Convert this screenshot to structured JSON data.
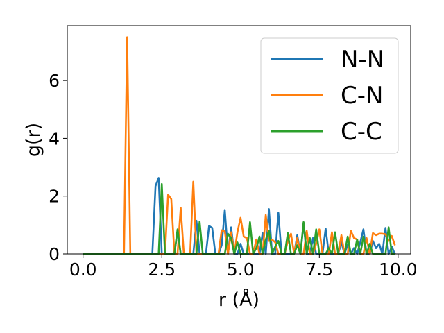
{
  "chart_data": {
    "type": "line",
    "xlabel": "r (Å)",
    "ylabel": "g(r)",
    "xlim": [
      -0.5,
      10.4
    ],
    "ylim": [
      0,
      7.9
    ],
    "xticks": [
      0.0,
      2.5,
      5.0,
      7.5,
      10.0
    ],
    "xtick_labels": [
      "0.0",
      "2.5",
      "5.0",
      "7.5",
      "10.0"
    ],
    "yticks": [
      0,
      2,
      4,
      6
    ],
    "ytick_labels": [
      "0",
      "2",
      "4",
      "6"
    ],
    "grid": false,
    "legend": "upper right",
    "series": [
      {
        "name": "N-N",
        "color": "#1f77b4",
        "x": [
          0.0,
          2.1,
          2.2,
          2.3,
          2.4,
          2.5,
          2.6,
          2.7,
          2.8,
          2.9,
          3.0,
          3.1,
          3.2,
          3.3,
          3.4,
          3.5,
          3.6,
          3.7,
          3.8,
          3.9,
          4.0,
          4.1,
          4.2,
          4.3,
          4.4,
          4.5,
          4.6,
          4.7,
          4.8,
          4.9,
          5.0,
          5.1,
          5.2,
          5.3,
          5.4,
          5.5,
          5.6,
          5.7,
          5.8,
          5.9,
          6.0,
          6.1,
          6.2,
          6.3,
          6.4,
          6.5,
          6.6,
          6.7,
          6.8,
          6.9,
          7.0,
          7.1,
          7.2,
          7.3,
          7.4,
          7.5,
          7.6,
          7.7,
          7.8,
          7.9,
          8.0,
          8.1,
          8.2,
          8.3,
          8.4,
          8.5,
          8.6,
          8.7,
          8.8,
          8.9,
          9.0,
          9.1,
          9.2,
          9.3,
          9.4,
          9.5,
          9.6,
          9.7,
          9.8,
          9.9
        ],
        "y": [
          0.0,
          0.0,
          0.0,
          2.35,
          2.63,
          0.0,
          0.0,
          0.0,
          0.0,
          0.0,
          0.8,
          0.0,
          0.0,
          0.0,
          0.0,
          0.0,
          1.15,
          0.0,
          0.0,
          0.0,
          0.97,
          0.9,
          0.0,
          0.0,
          0.3,
          1.52,
          0.0,
          0.92,
          0.0,
          0.0,
          0.35,
          0.0,
          0.0,
          0.0,
          0.0,
          0.0,
          0.0,
          0.72,
          0.0,
          1.55,
          0.0,
          0.0,
          1.42,
          0.0,
          0.0,
          0.0,
          0.0,
          0.0,
          0.65,
          0.0,
          1.05,
          0.0,
          0.0,
          0.55,
          0.0,
          0.0,
          0.0,
          0.88,
          0.0,
          0.0,
          0.0,
          0.0,
          0.4,
          0.0,
          0.32,
          0.0,
          0.2,
          0.0,
          0.4,
          0.85,
          0.0,
          0.0,
          0.45,
          0.2,
          0.35,
          0.0,
          0.9,
          0.0,
          0.25,
          0.0
        ]
      },
      {
        "name": "C-N",
        "color": "#ff7f0e",
        "x": [
          0.0,
          1.3,
          1.4,
          1.5,
          1.6,
          2.6,
          2.7,
          2.8,
          2.9,
          3.0,
          3.1,
          3.2,
          3.3,
          3.4,
          3.5,
          3.6,
          3.7,
          3.8,
          3.9,
          4.0,
          4.1,
          4.2,
          4.3,
          4.4,
          4.5,
          4.6,
          4.7,
          4.8,
          4.9,
          5.0,
          5.1,
          5.2,
          5.3,
          5.4,
          5.5,
          5.6,
          5.7,
          5.8,
          5.9,
          6.0,
          6.1,
          6.2,
          6.3,
          6.4,
          6.5,
          6.6,
          6.7,
          6.8,
          6.9,
          7.0,
          7.1,
          7.2,
          7.3,
          7.4,
          7.5,
          7.6,
          7.7,
          7.8,
          7.9,
          8.0,
          8.1,
          8.2,
          8.3,
          8.4,
          8.5,
          8.6,
          8.7,
          8.8,
          8.9,
          9.0,
          9.1,
          9.2,
          9.3,
          9.4,
          9.5,
          9.6,
          9.7,
          9.8,
          9.9
        ],
        "y": [
          0.0,
          0.0,
          7.5,
          0.0,
          0.0,
          0.0,
          2.05,
          1.9,
          0.0,
          0.0,
          1.6,
          0.0,
          0.0,
          0.0,
          2.5,
          0.0,
          0.0,
          0.0,
          0.0,
          0.0,
          0.0,
          0.0,
          0.0,
          0.82,
          0.78,
          0.0,
          0.75,
          0.0,
          0.75,
          1.25,
          0.6,
          0.55,
          0.0,
          0.0,
          0.5,
          0.0,
          0.0,
          1.35,
          0.45,
          0.5,
          0.4,
          0.0,
          0.0,
          0.0,
          0.45,
          0.7,
          0.0,
          0.55,
          0.0,
          0.0,
          0.8,
          0.0,
          0.0,
          0.35,
          0.85,
          0.0,
          0.0,
          0.0,
          0.75,
          0.0,
          0.0,
          0.65,
          0.0,
          0.0,
          0.8,
          0.55,
          0.5,
          0.0,
          0.0,
          0.55,
          0.0,
          0.72,
          0.65,
          0.7,
          0.7,
          0.68,
          0.45,
          0.62,
          0.3
        ]
      },
      {
        "name": "C-C",
        "color": "#2ca02c",
        "x": [
          0.0,
          2.3,
          2.4,
          2.5,
          2.6,
          2.9,
          3.0,
          3.1,
          3.2,
          3.5,
          3.6,
          3.7,
          3.8,
          4.3,
          4.4,
          4.5,
          4.6,
          4.7,
          4.8,
          4.9,
          5.0,
          5.1,
          5.2,
          5.3,
          5.4,
          5.5,
          5.6,
          5.7,
          5.8,
          5.9,
          6.0,
          6.1,
          6.2,
          6.3,
          6.4,
          6.5,
          6.6,
          6.7,
          6.8,
          6.9,
          7.0,
          7.1,
          7.2,
          7.3,
          7.4,
          7.5,
          7.6,
          7.7,
          7.8,
          7.9,
          8.0,
          8.1,
          8.2,
          8.3,
          8.4,
          8.5,
          8.6,
          8.7,
          8.8,
          8.9,
          9.0,
          9.1,
          9.2,
          9.3,
          9.4,
          9.5,
          9.6,
          9.7,
          9.8,
          9.9
        ],
        "y": [
          0.0,
          0.0,
          0.0,
          2.42,
          0.0,
          0.0,
          0.85,
          0.0,
          0.0,
          0.0,
          0.0,
          1.12,
          0.0,
          0.0,
          0.0,
          0.0,
          0.7,
          0.55,
          0.0,
          0.4,
          0.0,
          0.0,
          0.0,
          1.1,
          0.0,
          0.2,
          0.6,
          0.0,
          0.5,
          0.8,
          0.0,
          0.25,
          0.45,
          0.0,
          0.0,
          0.72,
          0.0,
          0.0,
          0.3,
          0.0,
          1.1,
          0.0,
          0.55,
          0.0,
          0.85,
          0.0,
          0.0,
          0.0,
          0.2,
          0.0,
          0.75,
          0.0,
          0.0,
          0.0,
          0.6,
          0.0,
          0.0,
          0.5,
          0.0,
          0.6,
          0.0,
          0.35,
          0.0,
          0.0,
          0.0,
          0.0,
          0.0,
          0.92,
          0.0,
          0.0
        ]
      }
    ]
  }
}
